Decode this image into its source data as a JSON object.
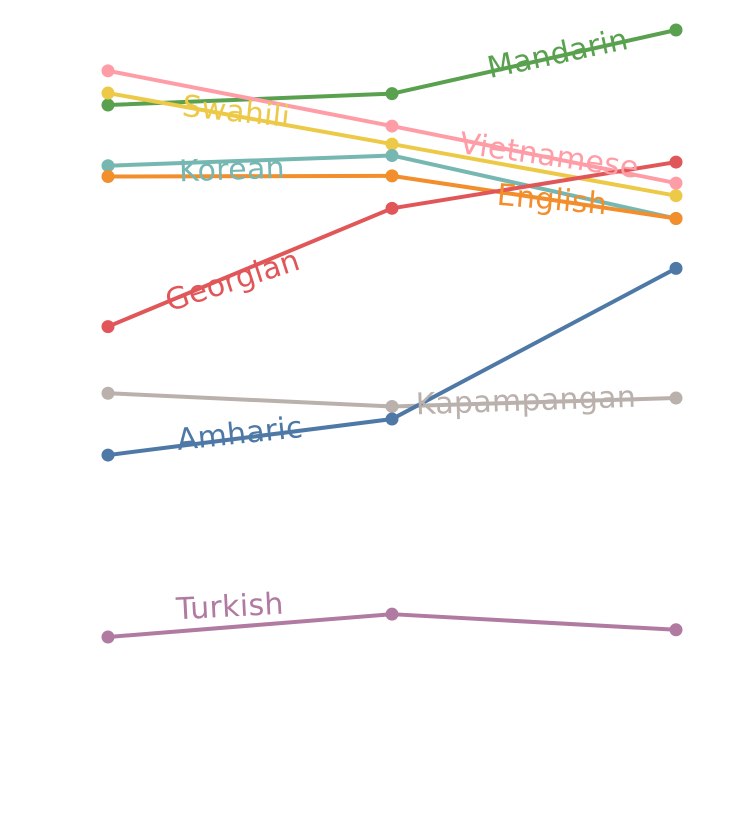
{
  "chart_data": {
    "type": "line",
    "title": "",
    "xlabel": "",
    "ylabel": "",
    "x": [
      0,
      1,
      2
    ],
    "ylim": [
      0,
      100
    ],
    "grid": false,
    "legend": "inline labels",
    "series": [
      {
        "name": "Mandarin",
        "color": "#59a14f",
        "values": [
          88.6,
          90.5,
          101.1
        ]
      },
      {
        "name": "Swahili",
        "color": "#edc948",
        "values": [
          90.6,
          82.1,
          73.5
        ]
      },
      {
        "name": "Vietnamese",
        "color": "#ff9da7",
        "values": [
          94.3,
          85.1,
          75.6
        ]
      },
      {
        "name": "Korean",
        "color": "#76b7b2",
        "values": [
          78.5,
          80.2,
          69.7
        ]
      },
      {
        "name": "English",
        "color": "#f28e2b",
        "values": [
          76.7,
          76.8,
          69.7
        ]
      },
      {
        "name": "Georgian",
        "color": "#e15759",
        "values": [
          51.7,
          71.4,
          79.1
        ]
      },
      {
        "name": "Kapampangan",
        "color": "#bab0ac",
        "values": [
          40.6,
          38.4,
          39.8
        ]
      },
      {
        "name": "Amharic",
        "color": "#4e79a7",
        "values": [
          30.3,
          36.3,
          61.4
        ]
      },
      {
        "name": "Turkish",
        "color": "#b07aa1",
        "values": [
          0.0,
          3.8,
          1.2
        ]
      }
    ]
  }
}
